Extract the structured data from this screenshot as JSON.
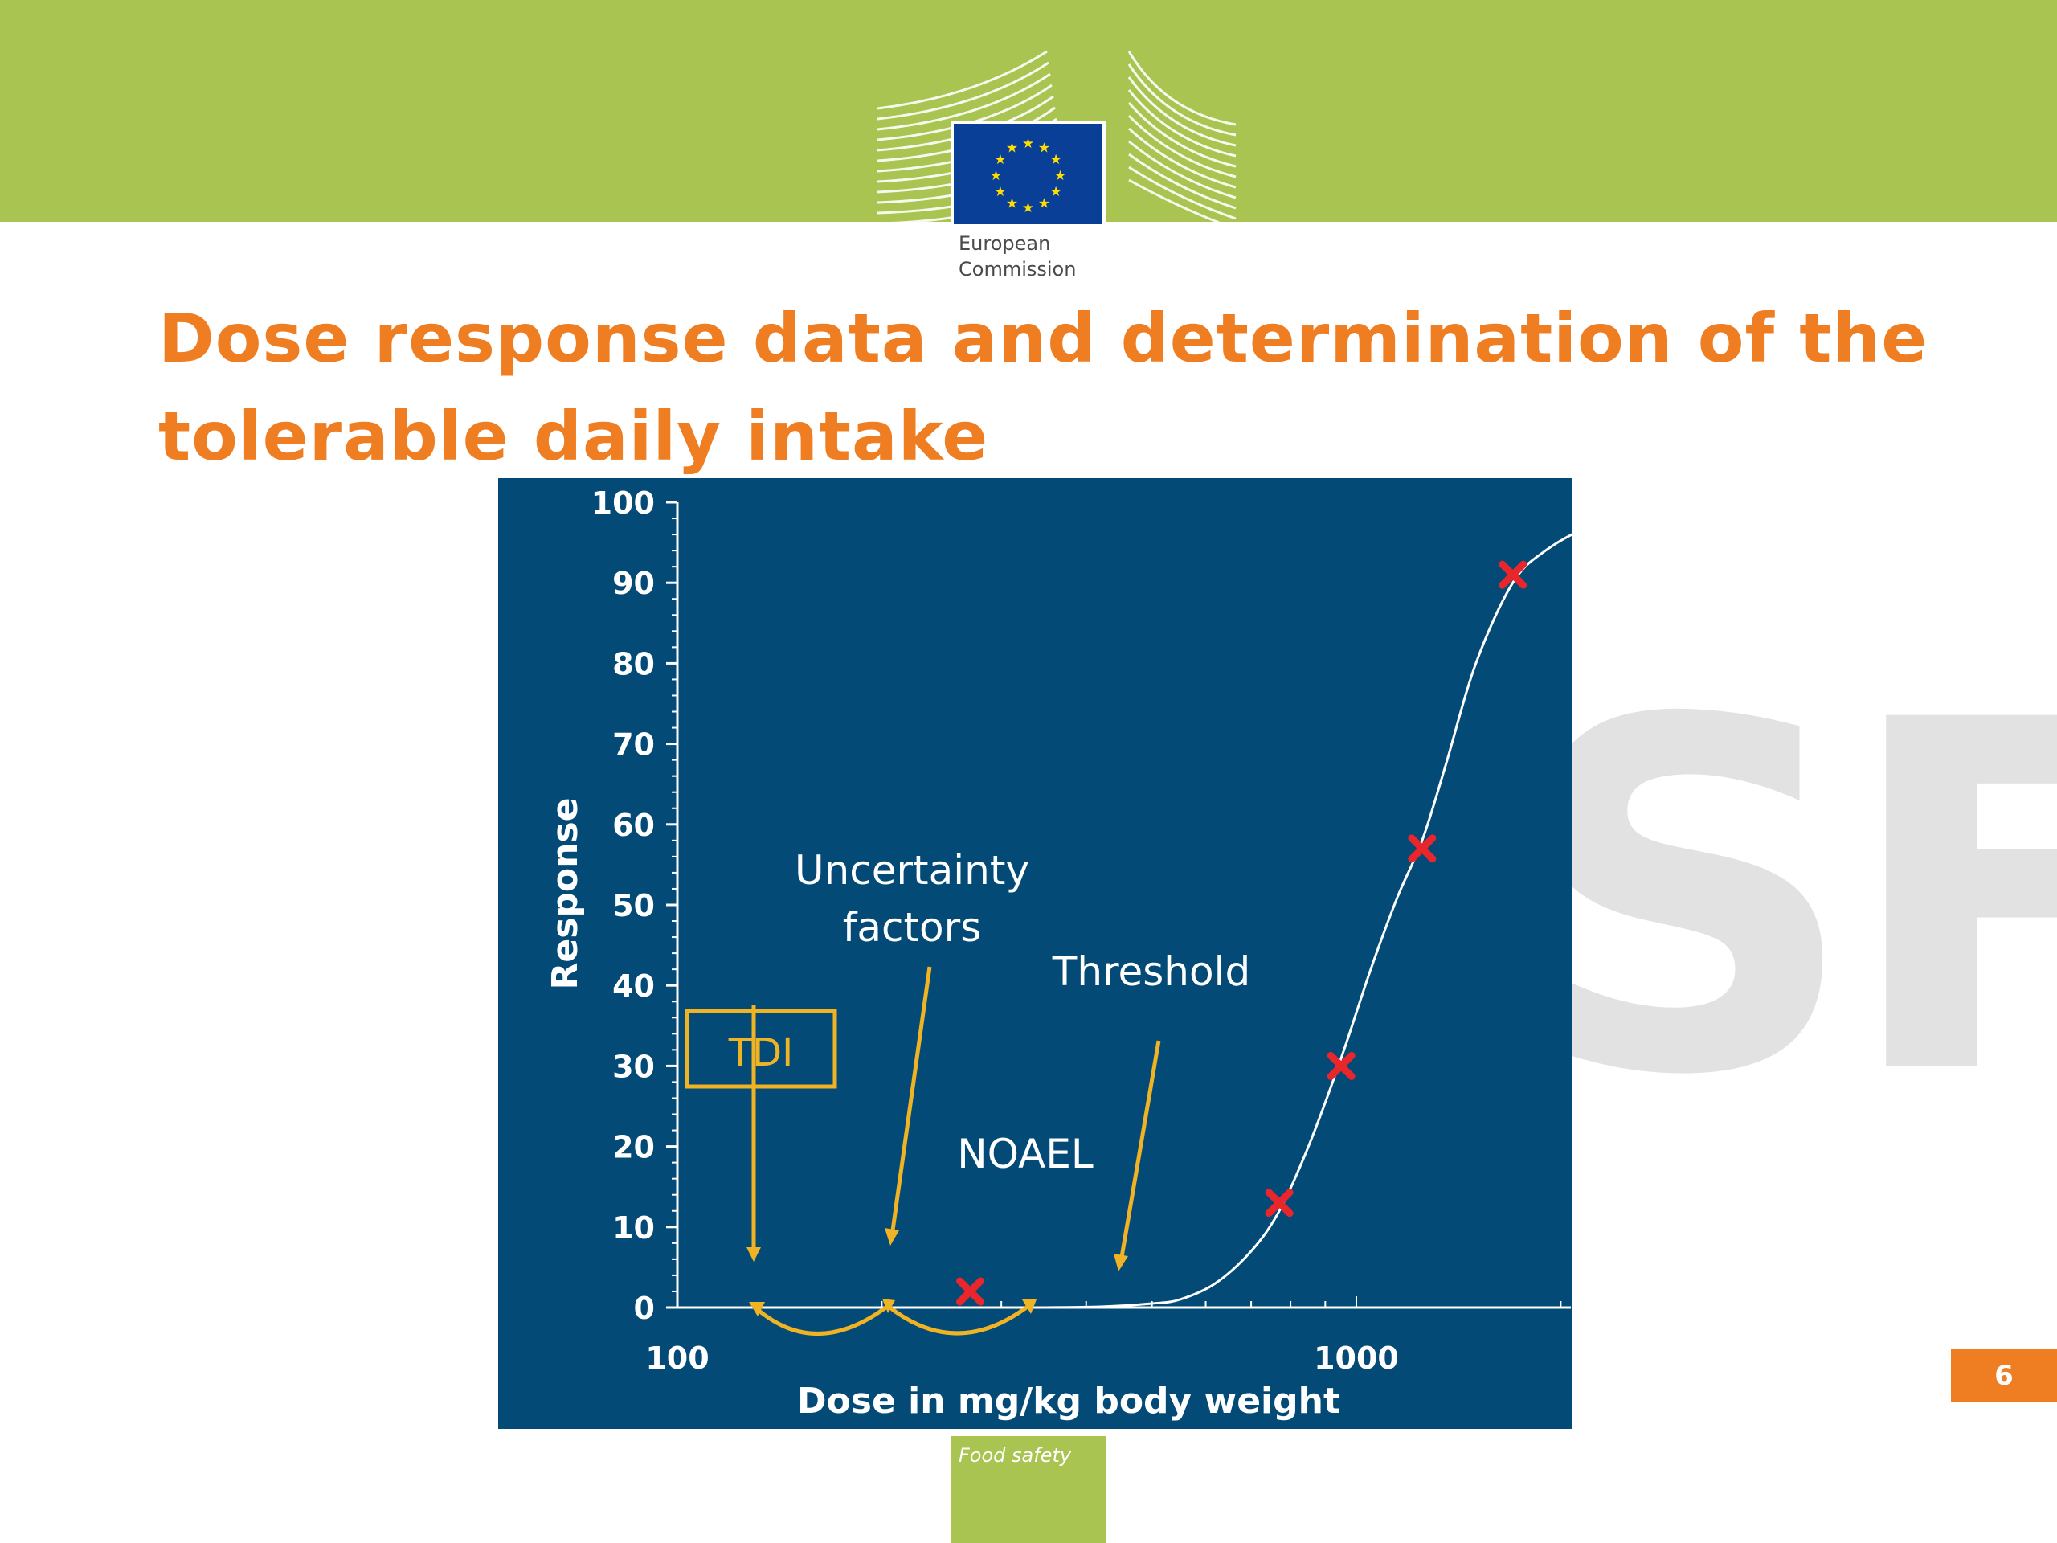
{
  "slide": {
    "title": "Dose response data and determination of the tolerable daily intake",
    "logo": {
      "line1": "European",
      "line2": "Commission"
    },
    "watermark": "SF",
    "page_number": "6",
    "footer_label": "Food safety"
  },
  "colors": {
    "brand_green": "#a9c451",
    "title_orange": "#ef7d22",
    "chart_background": "#034a77",
    "arrow_gold": "#f0b323",
    "point_red": "#e8262b",
    "eu_blue": "#0a3f97",
    "eu_gold": "#ffdd00"
  },
  "icons": [
    "european-commission-logo",
    "eu-flag-icon"
  ],
  "chart_data": {
    "type": "scatter",
    "xlabel": "Dose in mg/kg body weight",
    "ylabel": "Response",
    "x_scale": "log",
    "xlim": [
      100,
      3000
    ],
    "ylim": [
      0,
      100
    ],
    "x_ticks": [
      100,
      1000
    ],
    "y_ticks": [
      0,
      10,
      20,
      30,
      40,
      50,
      60,
      70,
      80,
      90,
      100
    ],
    "grid": false,
    "legend": "none",
    "points": [
      {
        "x": 270,
        "y": 2
      },
      {
        "x": 770,
        "y": 13
      },
      {
        "x": 950,
        "y": 30
      },
      {
        "x": 1250,
        "y": 57
      },
      {
        "x": 1700,
        "y": 91
      }
    ],
    "curve": [
      [
        340,
        0
      ],
      [
        420,
        0.1
      ],
      [
        500,
        0.5
      ],
      [
        550,
        1
      ],
      [
        620,
        3
      ],
      [
        700,
        7
      ],
      [
        770,
        12
      ],
      [
        850,
        20
      ],
      [
        950,
        31
      ],
      [
        1050,
        42
      ],
      [
        1150,
        51
      ],
      [
        1250,
        58
      ],
      [
        1350,
        67
      ],
      [
        1500,
        80
      ],
      [
        1700,
        90
      ],
      [
        1900,
        94
      ],
      [
        2200,
        97
      ],
      [
        2600,
        99
      ]
    ],
    "annotations": {
      "tdi": "TDI",
      "uncertainty_line1": "Uncertainty",
      "uncertainty_line2": "factors",
      "threshold": "Threshold",
      "noael": "NOAEL"
    }
  }
}
